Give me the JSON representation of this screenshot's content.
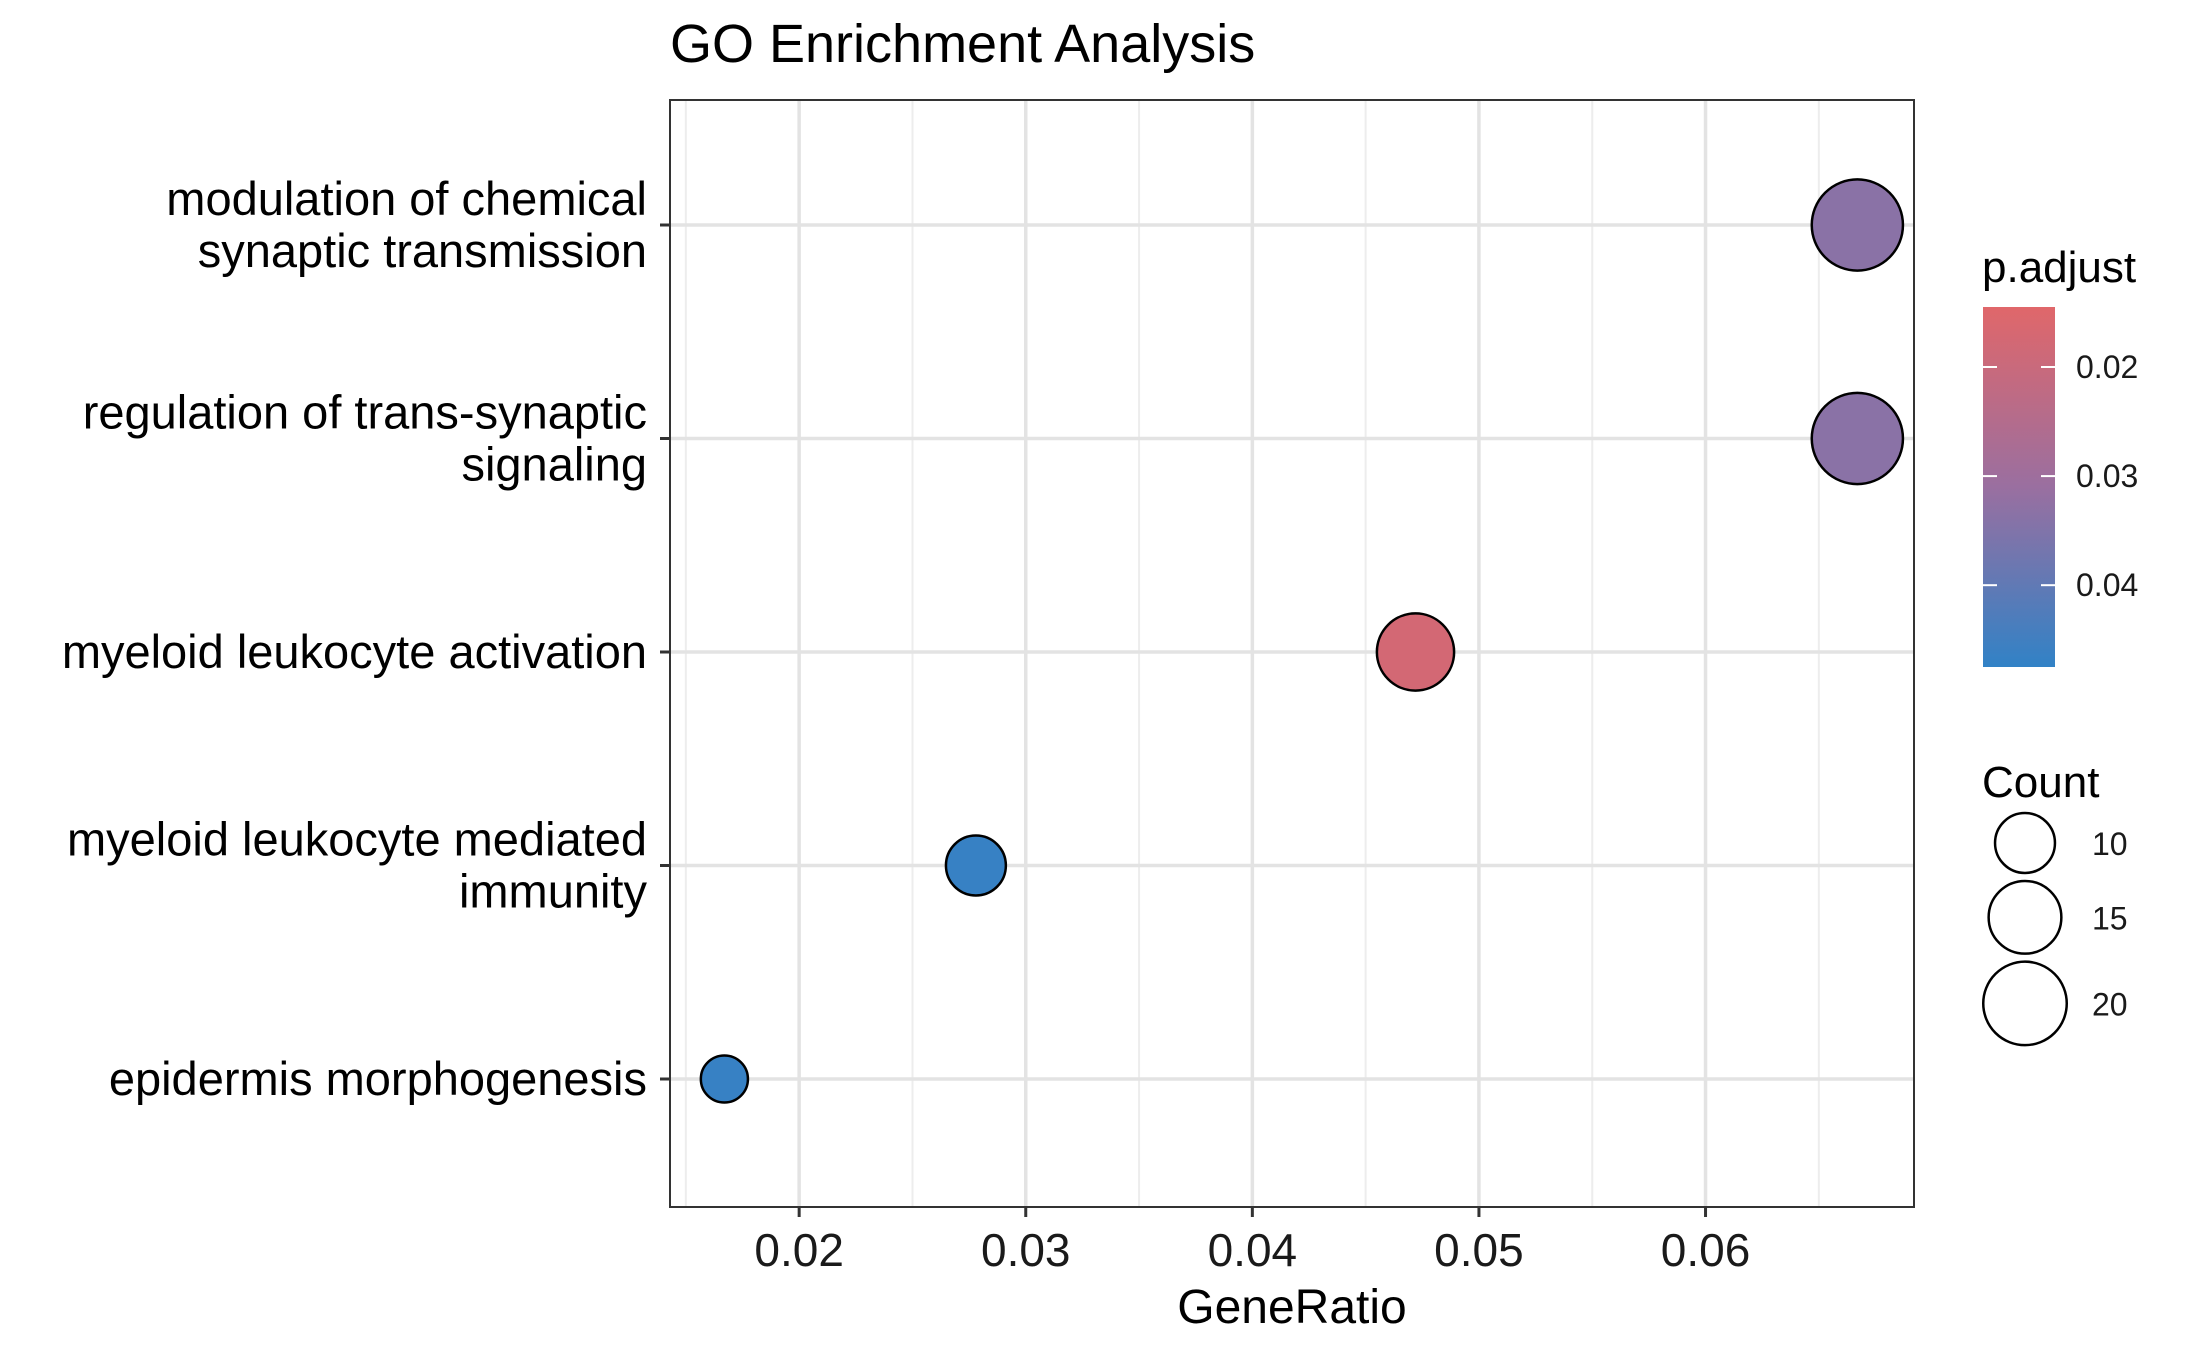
{
  "chart_data": {
    "type": "scatter",
    "title": "GO Enrichment Analysis",
    "xlabel": "GeneRatio",
    "ylabel": "",
    "xlim": [
      0.0143,
      0.0692
    ],
    "x_ticks": [
      0.02,
      0.03,
      0.04,
      0.05,
      0.06
    ],
    "x_tick_labels": [
      "0.02",
      "0.03",
      "0.04",
      "0.05",
      "0.06"
    ],
    "categories": [
      [
        "modulation of chemical",
        "synaptic transmission"
      ],
      [
        "regulation of trans-synaptic",
        "signaling"
      ],
      [
        "myeloid leukocyte activation"
      ],
      [
        "myeloid leukocyte mediated",
        "immunity"
      ],
      [
        "epidermis morphogenesis"
      ]
    ],
    "points": [
      {
        "x": 0.0667,
        "count": 24,
        "p_adjust": 0.0335
      },
      {
        "x": 0.0667,
        "count": 24,
        "p_adjust": 0.0335
      },
      {
        "x": 0.0472,
        "count": 17,
        "p_adjust": 0.0175
      },
      {
        "x": 0.0278,
        "count": 10,
        "p_adjust": 0.0465
      },
      {
        "x": 0.0167,
        "count": 6,
        "p_adjust": 0.0465
      }
    ],
    "grid": true,
    "color_legend": {
      "title": "p.adjust",
      "range": [
        0.0145,
        0.0475
      ],
      "ticks": [
        0.02,
        0.03,
        0.04
      ],
      "tick_labels": [
        "0.02",
        "0.03",
        "0.04"
      ],
      "low_color": "#E0676A",
      "high_color": "#3182C6",
      "placement": "right"
    },
    "size_legend": {
      "title": "Count",
      "values": [
        10,
        15,
        20
      ],
      "labels": [
        "10",
        "15",
        "20"
      ],
      "placement": "right"
    }
  }
}
